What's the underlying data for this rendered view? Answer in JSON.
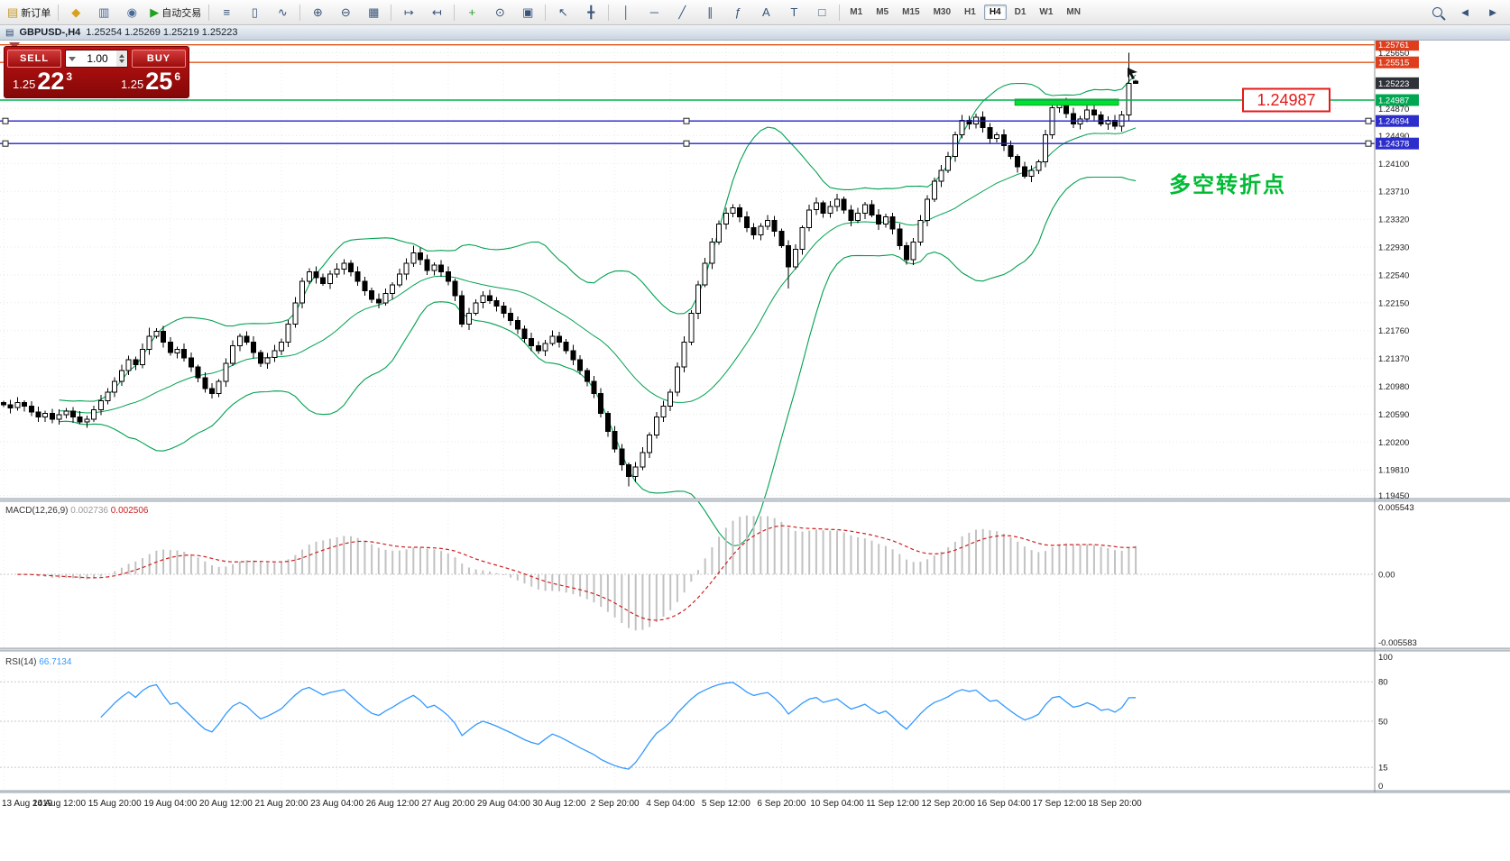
{
  "toolbar": {
    "items": [
      {
        "t": "btn",
        "name": "new-order-button",
        "icon": "new-order-icon",
        "glyph": "▤",
        "glyph_color": "#c59a2a",
        "label": "新订单"
      },
      {
        "t": "sep"
      },
      {
        "t": "btn",
        "name": "market-watch-button",
        "icon": "market-watch-icon",
        "glyph": "◆",
        "glyph_color": "#d8a01d"
      },
      {
        "t": "btn",
        "name": "data-window-button",
        "icon": "data-window-icon",
        "glyph": "▥",
        "glyph_color": "#46689a"
      },
      {
        "t": "btn",
        "name": "navigator-button",
        "icon": "navigator-icon",
        "glyph": "◉",
        "glyph_color": "#46689a"
      },
      {
        "t": "btn",
        "name": "autotrading-button",
        "icon": "play-icon",
        "glyph": "▶",
        "glyph_color": "#21a121",
        "label": "自动交易"
      },
      {
        "t": "sep"
      },
      {
        "t": "btn",
        "name": "bar-chart-button",
        "icon": "bars-icon",
        "glyph": "≡"
      },
      {
        "t": "btn",
        "name": "candlestick-chart-button",
        "icon": "candles-icon",
        "glyph": "▯"
      },
      {
        "t": "btn",
        "name": "line-chart-button",
        "icon": "line-icon",
        "glyph": "∿"
      },
      {
        "t": "sep"
      },
      {
        "t": "btn",
        "name": "zoom-in-button",
        "icon": "zoom-in-icon",
        "glyph": "⊕"
      },
      {
        "t": "btn",
        "name": "zoom-out-button",
        "icon": "zoom-out-icon",
        "glyph": "⊖"
      },
      {
        "t": "btn",
        "name": "tile-windows-button",
        "icon": "tile-windows-icon",
        "glyph": "▦"
      },
      {
        "t": "sep"
      },
      {
        "t": "btn",
        "name": "auto-scroll-button",
        "icon": "auto-scroll-icon",
        "glyph": "↦"
      },
      {
        "t": "btn",
        "name": "chart-shift-button",
        "icon": "chart-shift-icon",
        "glyph": "↤"
      },
      {
        "t": "sep"
      },
      {
        "t": "btn",
        "name": "indicators-button",
        "icon": "indicators-icon",
        "glyph": "+",
        "glyph_color": "#21a121"
      },
      {
        "t": "btn",
        "name": "periods-button",
        "icon": "clock-icon",
        "glyph": "⊙"
      },
      {
        "t": "btn",
        "name": "templates-button",
        "icon": "template-icon",
        "glyph": "▣"
      },
      {
        "t": "sep"
      },
      {
        "t": "btn",
        "name": "cursor-button",
        "icon": "cursor-icon",
        "glyph": "↖"
      },
      {
        "t": "btn",
        "name": "crosshair-button",
        "icon": "crosshair-icon",
        "glyph": "╋"
      },
      {
        "t": "sep"
      },
      {
        "t": "btn",
        "name": "vertical-line-button",
        "icon": "vline-icon",
        "glyph": "│"
      },
      {
        "t": "btn",
        "name": "horizontal-line-button",
        "icon": "hline-icon",
        "glyph": "─"
      },
      {
        "t": "btn",
        "name": "trendline-button",
        "icon": "trendline-icon",
        "glyph": "╱"
      },
      {
        "t": "btn",
        "name": "channel-button",
        "icon": "channel-icon",
        "glyph": "∥"
      },
      {
        "t": "btn",
        "name": "fibonacci-button",
        "icon": "fibonacci-icon",
        "glyph": "ƒ"
      },
      {
        "t": "btn",
        "name": "text-button",
        "icon": "text-icon",
        "glyph": "A"
      },
      {
        "t": "btn",
        "name": "label-button",
        "icon": "label-icon",
        "glyph": "T"
      },
      {
        "t": "btn",
        "name": "shapes-button",
        "icon": "shapes-icon",
        "glyph": "□"
      },
      {
        "t": "sep"
      },
      {
        "t": "tf",
        "name": "timeframe-m1-button",
        "label": "M1"
      },
      {
        "t": "tf",
        "name": "timeframe-m5-button",
        "label": "M5"
      },
      {
        "t": "tf",
        "name": "timeframe-m15-button",
        "label": "M15"
      },
      {
        "t": "tf",
        "name": "timeframe-m30-button",
        "label": "M30"
      },
      {
        "t": "tf",
        "name": "timeframe-h1-button",
        "label": "H1"
      },
      {
        "t": "tf",
        "name": "timeframe-h4-button",
        "label": "H4",
        "active": true
      },
      {
        "t": "tf",
        "name": "timeframe-d1-button",
        "label": "D1"
      },
      {
        "t": "tf",
        "name": "timeframe-w1-button",
        "label": "W1"
      },
      {
        "t": "tf",
        "name": "timeframe-mn-button",
        "label": "MN"
      },
      {
        "t": "spacer"
      },
      {
        "t": "btn",
        "name": "search-button",
        "icon": "magnifier-icon",
        "css_icon": "mag"
      },
      {
        "t": "btn",
        "name": "toolbar-prev-button",
        "icon": "chevron-left-icon",
        "glyph": "◄"
      },
      {
        "t": "btn",
        "name": "toolbar-next-button",
        "icon": "chevron-right-icon",
        "glyph": "►"
      }
    ]
  },
  "titlebar": {
    "icon_glyph": "▤",
    "symbol_period": "GBPUSD-,H4",
    "ohlc": "1.25254 1.25269 1.25219 1.25223"
  },
  "one_click": {
    "sell_label": "SELL",
    "buy_label": "BUY",
    "volume": "1.00",
    "bid_small": "1.25",
    "bid_big": "22",
    "bid_sup": "3",
    "ask_small": "1.25",
    "ask_big": "25",
    "ask_sup": "6"
  },
  "chart_data": {
    "type": "candlestick",
    "symbol": "GBPUSD-",
    "timeframe": "H4",
    "x_tick_labels": [
      "13 Aug 2019",
      "14 Aug 12:00",
      "15 Aug 20:00",
      "19 Aug 04:00",
      "20 Aug 12:00",
      "21 Aug 20:00",
      "23 Aug 04:00",
      "26 Aug 12:00",
      "27 Aug 20:00",
      "29 Aug 04:00",
      "30 Aug 12:00",
      "2 Sep 20:00",
      "4 Sep 04:00",
      "5 Sep 12:00",
      "6 Sep 20:00",
      "10 Sep 04:00",
      "11 Sep 12:00",
      "12 Sep 20:00",
      "16 Sep 04:00",
      "17 Sep 12:00",
      "18 Sep 20:00"
    ],
    "bars_per_tick": 8,
    "first_open": 1.2075,
    "closes": [
      1.2072,
      1.2068,
      1.2075,
      1.207,
      1.2062,
      1.2055,
      1.206,
      1.2052,
      1.2058,
      1.2063,
      1.2055,
      1.2048,
      1.2052,
      1.2065,
      1.2078,
      1.209,
      1.2105,
      1.212,
      1.2135,
      1.2128,
      1.215,
      1.2168,
      1.2175,
      1.216,
      1.2145,
      1.215,
      1.2138,
      1.2125,
      1.211,
      1.2095,
      1.2088,
      1.2105,
      1.213,
      1.2155,
      1.2168,
      1.216,
      1.2145,
      1.213,
      1.2138,
      1.2148,
      1.216,
      1.2185,
      1.2215,
      1.2245,
      1.2258,
      1.225,
      1.2242,
      1.2255,
      1.2262,
      1.227,
      1.2258,
      1.2245,
      1.2232,
      1.222,
      1.2215,
      1.2228,
      1.224,
      1.2255,
      1.227,
      1.2285,
      1.2275,
      1.226,
      1.2268,
      1.2258,
      1.2245,
      1.2225,
      1.2185,
      1.22,
      1.2215,
      1.2225,
      1.2218,
      1.221,
      1.22,
      1.219,
      1.2178,
      1.2165,
      1.2155,
      1.2148,
      1.2158,
      1.2168,
      1.216,
      1.2148,
      1.2135,
      1.212,
      1.2105,
      1.2088,
      1.206,
      1.2035,
      1.201,
      1.1988,
      1.1972,
      1.1985,
      1.2005,
      1.203,
      1.2055,
      1.207,
      1.209,
      1.2125,
      1.216,
      1.22,
      1.224,
      1.227,
      1.23,
      1.2325,
      1.234,
      1.2348,
      1.2335,
      1.232,
      1.231,
      1.2322,
      1.233,
      1.2315,
      1.2295,
      1.2265,
      1.229,
      1.232,
      1.2345,
      1.2355,
      1.234,
      1.235,
      1.236,
      1.2345,
      1.233,
      1.234,
      1.2352,
      1.2338,
      1.2325,
      1.2335,
      1.2318,
      1.2295,
      1.2275,
      1.23,
      1.233,
      1.236,
      1.2385,
      1.24,
      1.242,
      1.245,
      1.247,
      1.2465,
      1.2475,
      1.246,
      1.2445,
      1.245,
      1.2435,
      1.242,
      1.2405,
      1.2392,
      1.24,
      1.2412,
      1.245,
      1.2488,
      1.2495,
      1.248,
      1.2465,
      1.2472,
      1.2485,
      1.2478,
      1.2465,
      1.247,
      1.2462,
      1.2478,
      1.2522,
      1.25223
    ],
    "bar_overrides": {
      "21": {
        "h": 1.218
      },
      "59": {
        "h": 1.2295
      },
      "90": {
        "l": 1.1958
      },
      "105": {
        "h": 1.2353
      },
      "113": {
        "l": 1.2235
      },
      "140": {
        "h": 1.248
      },
      "152": {
        "h": 1.25
      },
      "162": {
        "h": 1.2565,
        "l": 1.247
      },
      "163": {
        "o": 1.25254,
        "h": 1.25269,
        "l": 1.25219
      }
    },
    "y_axis": {
      "tags": [
        {
          "price": 1.25761,
          "bg": "#df3e1c"
        },
        {
          "price": 1.25515,
          "bg": "#df3e1c"
        },
        {
          "price": 1.25223,
          "bg": "#2e3138"
        },
        {
          "price": 1.24987,
          "bg": "#00a651"
        },
        {
          "price": 1.24694,
          "bg": "#2d2dcb"
        },
        {
          "price": 1.24378,
          "bg": "#2d2dcb"
        }
      ],
      "grid_labels": [
        1.2565,
        1.2487,
        1.2449,
        1.241,
        1.2371,
        1.2332,
        1.2293,
        1.2254,
        1.2215,
        1.2176,
        1.2137,
        1.2098,
        1.2059,
        1.202,
        1.1981,
        1.1945
      ]
    },
    "hlines": [
      {
        "price": 1.25761,
        "color": "#e0561a",
        "handles": false
      },
      {
        "price": 1.25515,
        "color": "#e0561a",
        "handles": false
      },
      {
        "price": 1.24987,
        "color": "#00b050",
        "handles": false
      },
      {
        "price": 1.24694,
        "color": "#2222cc",
        "handles": true
      },
      {
        "price": 1.24378,
        "color": "#2222cc",
        "handles": true
      }
    ],
    "zone": {
      "from_bar": 146,
      "to_bar": 160,
      "price_top": 1.25,
      "price_bottom": 1.24915,
      "color": "#00e32c",
      "border": "#00a51e"
    },
    "price_label_box": {
      "text": "1.24987",
      "color": "#e51919"
    },
    "annotation": {
      "text": "多空转折点",
      "color": "#00bb33"
    },
    "indicators": {
      "bollinger": {
        "period": 20,
        "deviation": 2,
        "color": "#00a050"
      },
      "macd": {
        "label": "MACD(12,26,9)",
        "values": [
          "0.002736",
          "0.002506"
        ],
        "axis_top": "0.005543",
        "axis_zero": "0.00",
        "axis_bottom": "-0.005583",
        "hist_color": "#c2c2c2",
        "signal_color": "#cc2020"
      },
      "rsi": {
        "label": "RSI(14)",
        "value": "66.7134",
        "levels": [
          80,
          50,
          15
        ],
        "axis": [
          100,
          80,
          50,
          15,
          0
        ],
        "color": "#3399ff"
      }
    }
  }
}
